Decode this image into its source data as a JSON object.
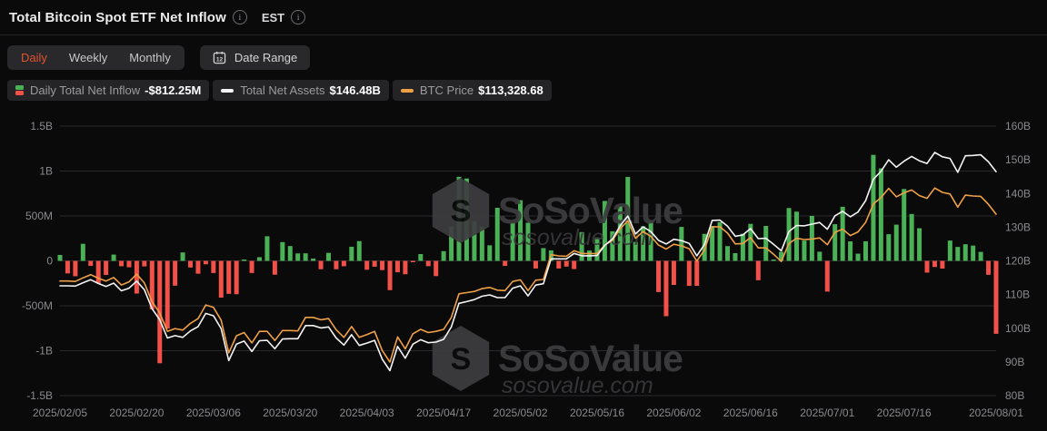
{
  "header": {
    "title": "Total Bitcoin Spot ETF Net Inflow",
    "timezone": "EST"
  },
  "toolbar": {
    "tabs": [
      {
        "label": "Daily",
        "active": true
      },
      {
        "label": "Weekly",
        "active": false
      },
      {
        "label": "Monthly",
        "active": false
      }
    ],
    "date_range_label": "Date Range",
    "calendar_icon_day": "12"
  },
  "legend": [
    {
      "name": "Daily Total Net Inflow",
      "value": "-$812.25M",
      "icon": "split-green-red-square"
    },
    {
      "name": "Total Net Assets",
      "value": "$146.48B",
      "icon": "white-dash"
    },
    {
      "name": "BTC Price",
      "value": "$113,328.68",
      "icon": "orange-dash"
    }
  ],
  "watermark": {
    "brand": "SoSoValue",
    "domain": "sosovalue.com"
  },
  "colors": {
    "accent": "#e0522e",
    "green": "#4bb157",
    "red": "#f15149",
    "net_assets_line": "#f4f4f4",
    "btc_line": "#efa045",
    "grid": "#29292c",
    "axis_text": "#8a8a8e",
    "watermark": "#3d3d40",
    "watermark_domain": "#39393c"
  },
  "chart_data": {
    "type": "combo",
    "title": "Total Bitcoin Spot ETF Net Inflow (Daily)",
    "left_axis": {
      "unit": "USD",
      "min_M": -1500,
      "max_M": 1500,
      "labels": [
        "1.5B",
        "1B",
        "500M",
        "0",
        "-500M",
        "-1B",
        "-1.5B"
      ]
    },
    "right_axis": {
      "unit": "USD",
      "min_B": 80,
      "max_B": 160,
      "labels": [
        "160B",
        "150B",
        "140B",
        "130B",
        "120B",
        "110B",
        "100B",
        "90B",
        "80B"
      ]
    },
    "btc_axis": {
      "unit": "USD",
      "hidden": true,
      "min": 67900,
      "max": 135400
    },
    "x_tick_indices": [
      0,
      10,
      20,
      30,
      40,
      50,
      60,
      70,
      80,
      90,
      100,
      110,
      122
    ],
    "x_tick_labels": [
      "2025/02/05",
      "2025/02/20",
      "2025/03/06",
      "2025/03/20",
      "2025/04/03",
      "2025/04/17",
      "2025/05/02",
      "2025/05/16",
      "2025/06/02",
      "2025/06/16",
      "2025/07/01",
      "2025/07/16",
      "2025/08/01"
    ],
    "dates": [
      "2025/02/05",
      "2025/02/06",
      "2025/02/07",
      "2025/02/10",
      "2025/02/11",
      "2025/02/12",
      "2025/02/13",
      "2025/02/14",
      "2025/02/18",
      "2025/02/19",
      "2025/02/20",
      "2025/02/21",
      "2025/02/24",
      "2025/02/25",
      "2025/02/26",
      "2025/02/27",
      "2025/02/28",
      "2025/03/03",
      "2025/03/04",
      "2025/03/05",
      "2025/03/06",
      "2025/03/07",
      "2025/03/10",
      "2025/03/11",
      "2025/03/12",
      "2025/03/13",
      "2025/03/14",
      "2025/03/17",
      "2025/03/18",
      "2025/03/19",
      "2025/03/20",
      "2025/03/21",
      "2025/03/24",
      "2025/03/25",
      "2025/03/26",
      "2025/03/27",
      "2025/03/28",
      "2025/03/31",
      "2025/04/01",
      "2025/04/02",
      "2025/04/03",
      "2025/04/04",
      "2025/04/07",
      "2025/04/08",
      "2025/04/09",
      "2025/04/10",
      "2025/04/11",
      "2025/04/14",
      "2025/04/15",
      "2025/04/16",
      "2025/04/17",
      "2025/04/21",
      "2025/04/22",
      "2025/04/23",
      "2025/04/24",
      "2025/04/25",
      "2025/04/28",
      "2025/04/29",
      "2025/04/30",
      "2025/05/01",
      "2025/05/02",
      "2025/05/05",
      "2025/05/06",
      "2025/05/07",
      "2025/05/08",
      "2025/05/09",
      "2025/05/12",
      "2025/05/13",
      "2025/05/14",
      "2025/05/15",
      "2025/05/16",
      "2025/05/19",
      "2025/05/20",
      "2025/05/21",
      "2025/05/22",
      "2025/05/23",
      "2025/05/27",
      "2025/05/28",
      "2025/05/29",
      "2025/05/30",
      "2025/06/02",
      "2025/06/03",
      "2025/06/04",
      "2025/06/05",
      "2025/06/06",
      "2025/06/09",
      "2025/06/10",
      "2025/06/11",
      "2025/06/12",
      "2025/06/13",
      "2025/06/16",
      "2025/06/17",
      "2025/06/18",
      "2025/06/20",
      "2025/06/23",
      "2025/06/24",
      "2025/06/25",
      "2025/06/26",
      "2025/06/27",
      "2025/06/30",
      "2025/07/01",
      "2025/07/02",
      "2025/07/03",
      "2025/07/07",
      "2025/07/08",
      "2025/07/09",
      "2025/07/10",
      "2025/07/11",
      "2025/07/14",
      "2025/07/15",
      "2025/07/16",
      "2025/07/17",
      "2025/07/18",
      "2025/07/21",
      "2025/07/22",
      "2025/07/23",
      "2025/07/24",
      "2025/07/25",
      "2025/07/28",
      "2025/07/29",
      "2025/07/30",
      "2025/07/31",
      "2025/08/01"
    ],
    "series": [
      {
        "name": "Daily Total Net Inflow",
        "type": "bar",
        "unit": "USD millions",
        "axis": "left",
        "values": [
          66,
          -140,
          -171,
          190,
          -56,
          -251,
          -157,
          70,
          -60,
          -71,
          -364,
          -62,
          -539,
          -1140,
          -754,
          -276,
          94,
          -74,
          -143,
          -38,
          -135,
          -409,
          -367,
          -371,
          13,
          -135,
          41,
          274,
          -154,
          209,
          165,
          83,
          84,
          26,
          -93,
          89,
          -93,
          -60,
          157,
          220,
          -99,
          -65,
          -103,
          -326,
          -127,
          -149,
          -1,
          76,
          -59,
          -170,
          108,
          381,
          936,
          917,
          442,
          380,
          173,
          591,
          -56,
          422,
          675,
          425,
          -85,
          142,
          117,
          -85,
          -64,
          -91,
          320,
          115,
          260,
          667,
          329,
          609,
          934,
          211,
          385,
          433,
          -347,
          -616,
          -268,
          378,
          -278,
          -278,
          301,
          386,
          431,
          164,
          86,
          301,
          412,
          -216,
          389,
          6,
          101,
          588,
          548,
          226,
          501,
          102,
          -342,
          408,
          602,
          217,
          80,
          218,
          1180,
          1030,
          297,
          403,
          800,
          522,
          363,
          -131,
          -68,
          -86,
          226,
          155,
          185,
          170,
          100,
          -155,
          -812.25
        ]
      },
      {
        "name": "Total Net Assets",
        "type": "line",
        "unit": "USD billions",
        "axis": "right",
        "values": [
          112.6,
          112.6,
          112.5,
          113.5,
          114.4,
          113.3,
          112.4,
          113.4,
          111.1,
          111.9,
          114.0,
          111.4,
          105.8,
          102.5,
          97.1,
          97.8,
          97.3,
          99.2,
          100.5,
          104.4,
          103.7,
          99.9,
          90.4,
          95.3,
          96.2,
          93.1,
          96.3,
          96.4,
          93.9,
          96.8,
          96.9,
          96.9,
          100.8,
          100.8,
          100.1,
          100.4,
          97.1,
          95.0,
          98.1,
          94.9,
          95.6,
          96.4,
          90.8,
          87.4,
          94.6,
          91.1,
          95.3,
          96.6,
          95.7,
          95.9,
          96.7,
          100.4,
          107.4,
          107.9,
          108.5,
          109.5,
          109.9,
          109.1,
          109.1,
          111.9,
          112.6,
          109.6,
          112.8,
          113.2,
          120.6,
          120.6,
          120.6,
          122.2,
          121.5,
          121.5,
          121.6,
          124.6,
          126.5,
          130.4,
          133.3,
          128.0,
          130.1,
          128.7,
          126.1,
          125.0,
          126.4,
          126.0,
          125.2,
          121.5,
          124.9,
          132.0,
          132.1,
          130.3,
          127.3,
          127.7,
          129.6,
          126.6,
          126.7,
          124.9,
          123.0,
          128.7,
          130.5,
          130.4,
          130.9,
          131.4,
          129.4,
          133.4,
          134.7,
          133.1,
          134.5,
          137.9,
          144.2,
          146.6,
          150.0,
          147.8,
          149.6,
          151.0,
          149.7,
          148.9,
          152.2,
          150.9,
          150.4,
          146.3,
          151.2,
          151.3,
          151.5,
          149.4,
          146.48
        ]
      },
      {
        "name": "BTC Price",
        "type": "line",
        "unit": "USD",
        "axis": "btc",
        "values": [
          96600,
          96600,
          96500,
          97400,
          98200,
          97300,
          96600,
          97500,
          95600,
          96400,
          98300,
          96100,
          91400,
          88600,
          84000,
          84700,
          84300,
          86000,
          87200,
          90600,
          90000,
          86800,
          78600,
          82900,
          83700,
          81100,
          84000,
          84000,
          81700,
          84200,
          84200,
          84100,
          87500,
          87500,
          86900,
          87200,
          84400,
          82500,
          85200,
          82500,
          83200,
          84000,
          79200,
          76300,
          82600,
          79600,
          83400,
          84500,
          83700,
          84000,
          84500,
          87500,
          93400,
          93700,
          94000,
          94700,
          95000,
          94300,
          94200,
          96500,
          96900,
          94200,
          96800,
          97000,
          103200,
          102900,
          102800,
          104200,
          103500,
          103500,
          103500,
          105600,
          106800,
          109700,
          111700,
          107300,
          109000,
          107800,
          105600,
          104600,
          105800,
          105400,
          104700,
          101600,
          104400,
          110200,
          110200,
          108600,
          105900,
          106000,
          107500,
          104900,
          104900,
          103300,
          101500,
          106000,
          107300,
          107000,
          107100,
          107400,
          105700,
          108800,
          109600,
          108000,
          108900,
          111300,
          115900,
          117500,
          119800,
          117700,
          118700,
          119400,
          118000,
          117300,
          119900,
          118800,
          118400,
          115100,
          118100,
          117900,
          117800,
          115800,
          113328.68
        ]
      }
    ],
    "latest": {
      "daily_net_inflow": "-$812.25M",
      "total_net_assets": "$146.48B",
      "btc_price": "$113,328.68"
    }
  }
}
